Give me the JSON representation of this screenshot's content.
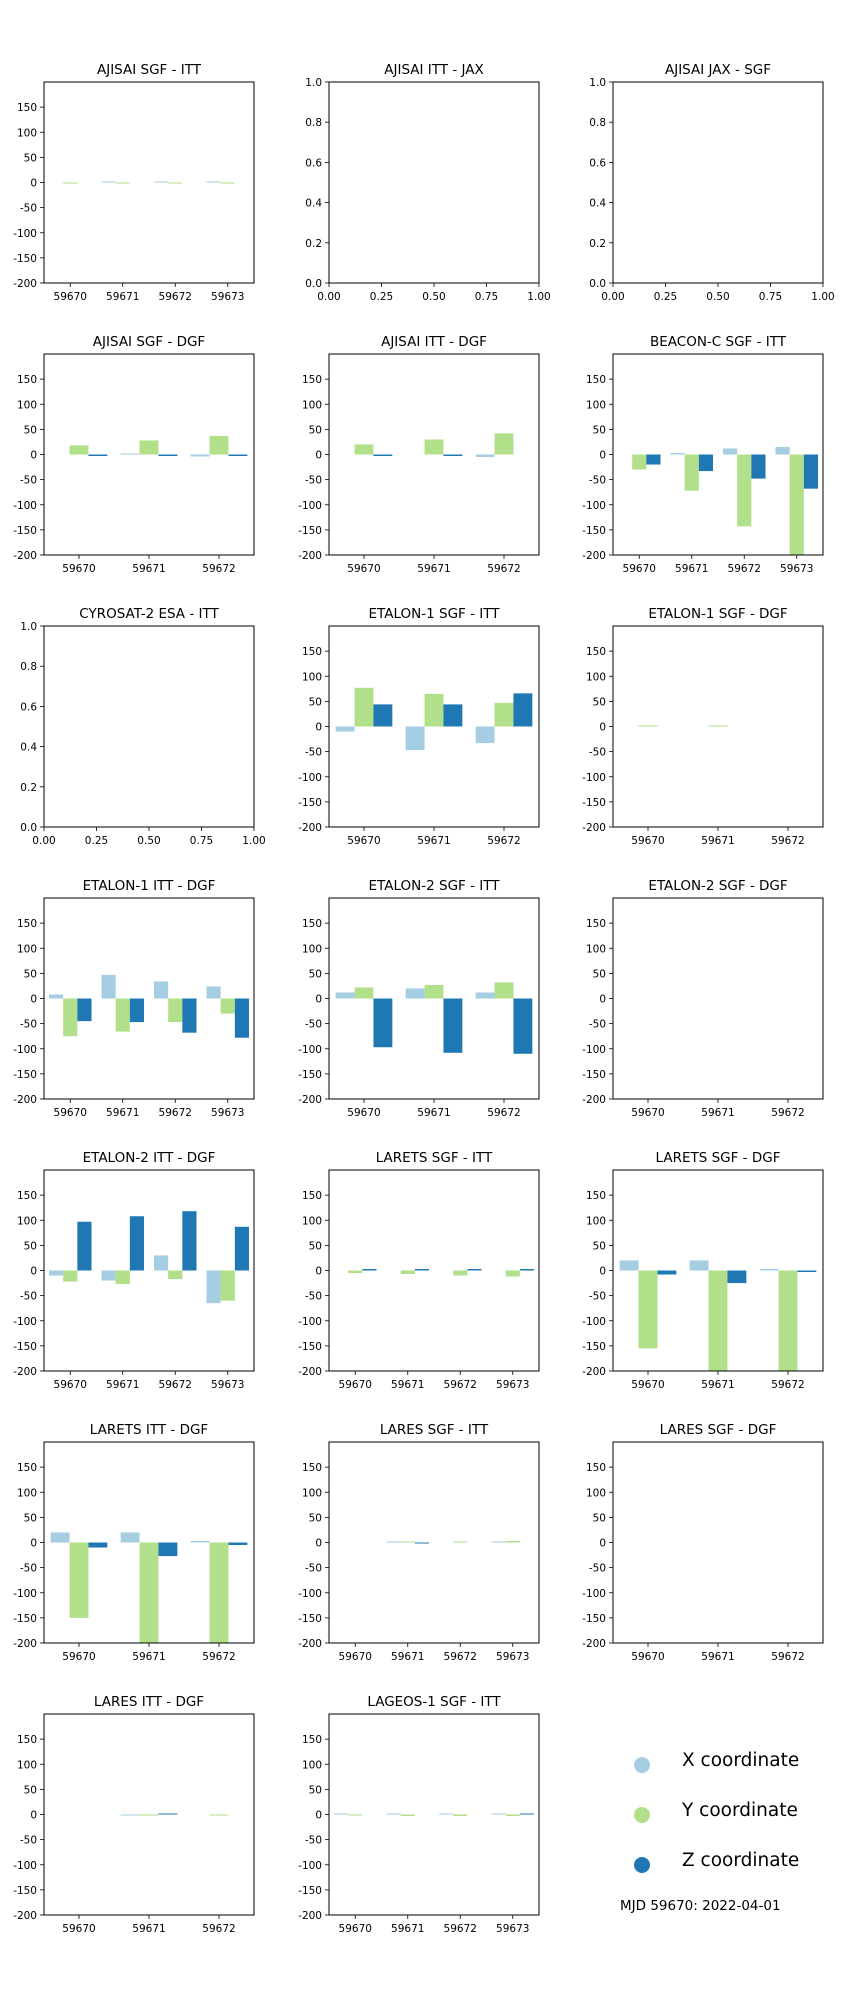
{
  "legend": {
    "items": [
      {
        "label": "X coordinate",
        "color": "#a6cee3"
      },
      {
        "label": "Y coordinate",
        "color": "#b2df8a"
      },
      {
        "label": "Z coordinate",
        "color": "#1f78b4"
      }
    ],
    "note": "MJD 59670: 2022-04-01"
  },
  "chart_data": [
    {
      "type": "bar",
      "title": "AJISAI SGF - ITT",
      "categories": [
        "59670",
        "59671",
        "59672",
        "59673"
      ],
      "ylim": [
        -200,
        200
      ],
      "yticks": [
        -200,
        -150,
        -100,
        -50,
        0,
        50,
        100,
        150
      ],
      "series": [
        {
          "name": "X coordinate",
          "values": [
            0,
            2,
            2,
            2
          ]
        },
        {
          "name": "Y coordinate",
          "values": [
            -2,
            -2,
            -2,
            -2
          ]
        },
        {
          "name": "Z coordinate",
          "values": [
            0,
            0,
            0,
            0
          ]
        }
      ]
    },
    {
      "type": "bar",
      "title": "AJISAI ITT - JAX",
      "empty": true,
      "xlim": [
        0,
        1
      ],
      "ylim": [
        0,
        1
      ],
      "xticks": [
        "0.00",
        "0.25",
        "0.50",
        "0.75",
        "1.00"
      ],
      "yticks": [
        "0.0",
        "0.2",
        "0.4",
        "0.6",
        "0.8",
        "1.0"
      ]
    },
    {
      "type": "bar",
      "title": "AJISAI JAX - SGF",
      "empty": true,
      "xlim": [
        0,
        1
      ],
      "ylim": [
        0,
        1
      ],
      "xticks": [
        "0.00",
        "0.25",
        "0.50",
        "0.75",
        "1.00"
      ],
      "yticks": [
        "0.0",
        "0.2",
        "0.4",
        "0.6",
        "0.8",
        "1.0"
      ]
    },
    {
      "type": "bar",
      "title": "AJISAI SGF - DGF",
      "categories": [
        "59670",
        "59671",
        "59672"
      ],
      "ylim": [
        -200,
        200
      ],
      "yticks": [
        -200,
        -150,
        -100,
        -50,
        0,
        50,
        100,
        150
      ],
      "series": [
        {
          "name": "X coordinate",
          "values": [
            0,
            2,
            -4
          ]
        },
        {
          "name": "Y coordinate",
          "values": [
            18,
            28,
            37
          ]
        },
        {
          "name": "Z coordinate",
          "values": [
            -3,
            -3,
            -3
          ]
        }
      ]
    },
    {
      "type": "bar",
      "title": "AJISAI ITT - DGF",
      "categories": [
        "59670",
        "59671",
        "59672"
      ],
      "ylim": [
        -200,
        200
      ],
      "yticks": [
        -200,
        -150,
        -100,
        -50,
        0,
        50,
        100,
        150
      ],
      "series": [
        {
          "name": "X coordinate",
          "values": [
            0,
            0,
            -5
          ]
        },
        {
          "name": "Y coordinate",
          "values": [
            20,
            30,
            42
          ]
        },
        {
          "name": "Z coordinate",
          "values": [
            -3,
            -3,
            0
          ]
        }
      ]
    },
    {
      "type": "bar",
      "title": "BEACON-C SGF - ITT",
      "categories": [
        "59670",
        "59671",
        "59672",
        "59673"
      ],
      "ylim": [
        -200,
        200
      ],
      "yticks": [
        -200,
        -150,
        -100,
        -50,
        0,
        50,
        100,
        150
      ],
      "series": [
        {
          "name": "X coordinate",
          "values": [
            0,
            3,
            12,
            15
          ]
        },
        {
          "name": "Y coordinate",
          "values": [
            -30,
            -72,
            -143,
            -200
          ]
        },
        {
          "name": "Z coordinate",
          "values": [
            -20,
            -33,
            -48,
            -68
          ]
        }
      ]
    },
    {
      "type": "bar",
      "title": "CYROSAT-2 ESA - ITT",
      "empty": true,
      "xlim": [
        0,
        1
      ],
      "ylim": [
        0,
        1
      ],
      "xticks": [
        "0.00",
        "0.25",
        "0.50",
        "0.75",
        "1.00"
      ],
      "yticks": [
        "0.0",
        "0.2",
        "0.4",
        "0.6",
        "0.8",
        "1.0"
      ]
    },
    {
      "type": "bar",
      "title": "ETALON-1 SGF - ITT",
      "categories": [
        "59670",
        "59671",
        "59672"
      ],
      "ylim": [
        -200,
        200
      ],
      "yticks": [
        -200,
        -150,
        -100,
        -50,
        0,
        50,
        100,
        150
      ],
      "series": [
        {
          "name": "X coordinate",
          "values": [
            -10,
            -47,
            -33
          ]
        },
        {
          "name": "Y coordinate",
          "values": [
            77,
            65,
            47
          ]
        },
        {
          "name": "Z coordinate",
          "values": [
            44,
            44,
            66
          ]
        }
      ]
    },
    {
      "type": "bar",
      "title": "ETALON-1 SGF - DGF",
      "categories": [
        "59670",
        "59671",
        "59672"
      ],
      "ylim": [
        -200,
        200
      ],
      "yticks": [
        -200,
        -150,
        -100,
        -50,
        0,
        50,
        100,
        150
      ],
      "series": [
        {
          "name": "X coordinate",
          "values": [
            0,
            0,
            0
          ]
        },
        {
          "name": "Y coordinate",
          "values": [
            2,
            2,
            0
          ]
        },
        {
          "name": "Z coordinate",
          "values": [
            0,
            0,
            0
          ]
        }
      ]
    },
    {
      "type": "bar",
      "title": "ETALON-1 ITT - DGF",
      "categories": [
        "59670",
        "59671",
        "59672",
        "59673"
      ],
      "ylim": [
        -200,
        200
      ],
      "yticks": [
        -200,
        -150,
        -100,
        -50,
        0,
        50,
        100,
        150
      ],
      "series": [
        {
          "name": "X coordinate",
          "values": [
            8,
            47,
            34,
            24
          ]
        },
        {
          "name": "Y coordinate",
          "values": [
            -75,
            -66,
            -47,
            -30
          ]
        },
        {
          "name": "Z coordinate",
          "values": [
            -45,
            -47,
            -68,
            -78
          ]
        }
      ]
    },
    {
      "type": "bar",
      "title": "ETALON-2 SGF - ITT",
      "categories": [
        "59670",
        "59671",
        "59672"
      ],
      "ylim": [
        -200,
        200
      ],
      "yticks": [
        -200,
        -150,
        -100,
        -50,
        0,
        50,
        100,
        150
      ],
      "series": [
        {
          "name": "X coordinate",
          "values": [
            12,
            20,
            12
          ]
        },
        {
          "name": "Y coordinate",
          "values": [
            22,
            27,
            32
          ]
        },
        {
          "name": "Z coordinate",
          "values": [
            -97,
            -108,
            -110
          ]
        }
      ]
    },
    {
      "type": "bar",
      "title": "ETALON-2 SGF - DGF",
      "categories": [
        "59670",
        "59671",
        "59672"
      ],
      "ylim": [
        -200,
        200
      ],
      "yticks": [
        -200,
        -150,
        -100,
        -50,
        0,
        50,
        100,
        150
      ],
      "series": [
        {
          "name": "X coordinate",
          "values": [
            0,
            0,
            0
          ]
        },
        {
          "name": "Y coordinate",
          "values": [
            0,
            0,
            0
          ]
        },
        {
          "name": "Z coordinate",
          "values": [
            0,
            0,
            0
          ]
        }
      ]
    },
    {
      "type": "bar",
      "title": "ETALON-2 ITT - DGF",
      "categories": [
        "59670",
        "59671",
        "59672",
        "59673"
      ],
      "ylim": [
        -200,
        200
      ],
      "yticks": [
        -200,
        -150,
        -100,
        -50,
        0,
        50,
        100,
        150
      ],
      "series": [
        {
          "name": "X coordinate",
          "values": [
            -10,
            -20,
            30,
            -65
          ]
        },
        {
          "name": "Y coordinate",
          "values": [
            -22,
            -27,
            -17,
            -60
          ]
        },
        {
          "name": "Z coordinate",
          "values": [
            97,
            108,
            118,
            87
          ]
        }
      ]
    },
    {
      "type": "bar",
      "title": "LARETS SGF - ITT",
      "categories": [
        "59670",
        "59671",
        "59672",
        "59673"
      ],
      "ylim": [
        -200,
        200
      ],
      "yticks": [
        -200,
        -150,
        -100,
        -50,
        0,
        50,
        100,
        150
      ],
      "series": [
        {
          "name": "X coordinate",
          "values": [
            0,
            0,
            0,
            0
          ]
        },
        {
          "name": "Y coordinate",
          "values": [
            -5,
            -7,
            -10,
            -12
          ]
        },
        {
          "name": "Z coordinate",
          "values": [
            3,
            3,
            3,
            3
          ]
        }
      ]
    },
    {
      "type": "bar",
      "title": "LARETS SGF - DGF",
      "categories": [
        "59670",
        "59671",
        "59672"
      ],
      "ylim": [
        -200,
        200
      ],
      "yticks": [
        -200,
        -150,
        -100,
        -50,
        0,
        50,
        100,
        150
      ],
      "series": [
        {
          "name": "X coordinate",
          "values": [
            20,
            20,
            3
          ]
        },
        {
          "name": "Y coordinate",
          "values": [
            -155,
            -200,
            -200
          ]
        },
        {
          "name": "Z coordinate",
          "values": [
            -8,
            -25,
            -3
          ]
        }
      ]
    },
    {
      "type": "bar",
      "title": "LARETS ITT - DGF",
      "categories": [
        "59670",
        "59671",
        "59672"
      ],
      "ylim": [
        -200,
        200
      ],
      "yticks": [
        -200,
        -150,
        -100,
        -50,
        0,
        50,
        100,
        150
      ],
      "series": [
        {
          "name": "X coordinate",
          "values": [
            20,
            20,
            3
          ]
        },
        {
          "name": "Y coordinate",
          "values": [
            -150,
            -200,
            -200
          ]
        },
        {
          "name": "Z coordinate",
          "values": [
            -10,
            -27,
            -5
          ]
        }
      ]
    },
    {
      "type": "bar",
      "title": "LARES SGF - ITT",
      "categories": [
        "59670",
        "59671",
        "59672",
        "59673"
      ],
      "ylim": [
        -200,
        200
      ],
      "yticks": [
        -200,
        -150,
        -100,
        -50,
        0,
        50,
        100,
        150
      ],
      "series": [
        {
          "name": "X coordinate",
          "values": [
            0,
            2,
            0,
            2
          ]
        },
        {
          "name": "Y coordinate",
          "values": [
            0,
            2,
            2,
            3
          ]
        },
        {
          "name": "Z coordinate",
          "values": [
            0,
            -2,
            0,
            0
          ]
        }
      ]
    },
    {
      "type": "bar",
      "title": "LARES SGF - DGF",
      "categories": [
        "59670",
        "59671",
        "59672"
      ],
      "ylim": [
        -200,
        200
      ],
      "yticks": [
        -200,
        -150,
        -100,
        -50,
        0,
        50,
        100,
        150
      ],
      "series": [
        {
          "name": "X coordinate",
          "values": [
            0,
            0,
            0
          ]
        },
        {
          "name": "Y coordinate",
          "values": [
            0,
            0,
            0
          ]
        },
        {
          "name": "Z coordinate",
          "values": [
            0,
            0,
            0
          ]
        }
      ]
    },
    {
      "type": "bar",
      "title": "LARES ITT - DGF",
      "categories": [
        "59670",
        "59671",
        "59672"
      ],
      "ylim": [
        -200,
        200
      ],
      "yticks": [
        -200,
        -150,
        -100,
        -50,
        0,
        50,
        100,
        150
      ],
      "series": [
        {
          "name": "X coordinate",
          "values": [
            0,
            -2,
            0
          ]
        },
        {
          "name": "Y coordinate",
          "values": [
            0,
            -2,
            -2
          ]
        },
        {
          "name": "Z coordinate",
          "values": [
            0,
            2,
            0
          ]
        }
      ]
    },
    {
      "type": "bar",
      "title": "LAGEOS-1 SGF - ITT",
      "categories": [
        "59670",
        "59671",
        "59672",
        "59673"
      ],
      "ylim": [
        -200,
        200
      ],
      "yticks": [
        -200,
        -150,
        -100,
        -50,
        0,
        50,
        100,
        150
      ],
      "series": [
        {
          "name": "X coordinate",
          "values": [
            2,
            2,
            2,
            2
          ]
        },
        {
          "name": "Y coordinate",
          "values": [
            -2,
            -3,
            -3,
            -3
          ]
        },
        {
          "name": "Z coordinate",
          "values": [
            0,
            0,
            0,
            2
          ]
        }
      ]
    }
  ]
}
